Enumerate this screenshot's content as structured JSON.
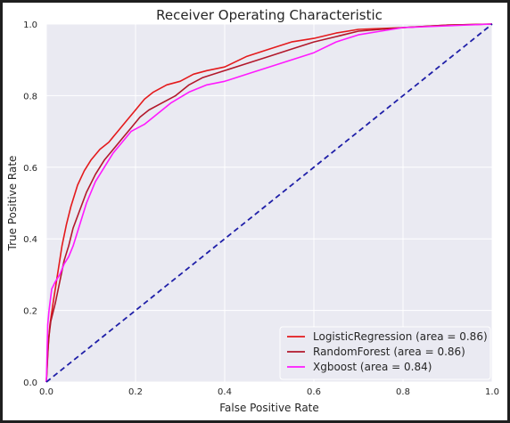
{
  "chart_data": {
    "type": "line",
    "title": "Receiver Operating Characteristic",
    "xlabel": "False Positive Rate",
    "ylabel": "True Positive Rate",
    "xlim": [
      0,
      1
    ],
    "ylim": [
      0,
      1
    ],
    "xticks": [
      "0.0",
      "0.2",
      "0.4",
      "0.6",
      "0.8",
      "1.0"
    ],
    "yticks": [
      "0.0",
      "0.2",
      "0.4",
      "0.6",
      "0.8",
      "1.0"
    ],
    "grid": true,
    "legend_position": "bottom-right",
    "background_color": "#eaeaf2",
    "series": [
      {
        "name": "LogisticRegression (area = 0.86)",
        "color": "#e41a1c",
        "x": [
          0,
          0.003,
          0.008,
          0.015,
          0.025,
          0.035,
          0.045,
          0.055,
          0.07,
          0.085,
          0.1,
          0.12,
          0.14,
          0.16,
          0.18,
          0.2,
          0.22,
          0.24,
          0.27,
          0.3,
          0.33,
          0.36,
          0.4,
          0.45,
          0.5,
          0.55,
          0.6,
          0.65,
          0.7,
          0.8,
          0.9,
          1.0
        ],
        "y": [
          0,
          0.08,
          0.16,
          0.22,
          0.3,
          0.38,
          0.44,
          0.49,
          0.55,
          0.59,
          0.62,
          0.65,
          0.67,
          0.7,
          0.73,
          0.76,
          0.79,
          0.81,
          0.83,
          0.84,
          0.86,
          0.87,
          0.88,
          0.91,
          0.93,
          0.95,
          0.96,
          0.975,
          0.985,
          0.99,
          0.997,
          1.0
        ]
      },
      {
        "name": "RandomForest (area = 0.86)",
        "color": "#b2182b",
        "x": [
          0,
          0.005,
          0.01,
          0.02,
          0.03,
          0.04,
          0.05,
          0.06,
          0.075,
          0.09,
          0.11,
          0.13,
          0.15,
          0.17,
          0.19,
          0.21,
          0.23,
          0.26,
          0.29,
          0.32,
          0.35,
          0.4,
          0.45,
          0.5,
          0.55,
          0.6,
          0.65,
          0.7,
          0.8,
          0.9,
          1.0
        ],
        "y": [
          0,
          0.12,
          0.17,
          0.22,
          0.28,
          0.34,
          0.38,
          0.43,
          0.48,
          0.53,
          0.58,
          0.62,
          0.65,
          0.68,
          0.71,
          0.74,
          0.76,
          0.78,
          0.8,
          0.83,
          0.85,
          0.87,
          0.89,
          0.91,
          0.93,
          0.95,
          0.965,
          0.98,
          0.99,
          0.997,
          1.0
        ]
      },
      {
        "name": "Xgboost (area = 0.84)",
        "color": "#ff19ff",
        "x": [
          0,
          0.003,
          0.006,
          0.012,
          0.02,
          0.03,
          0.04,
          0.05,
          0.06,
          0.075,
          0.09,
          0.11,
          0.13,
          0.15,
          0.17,
          0.19,
          0.22,
          0.25,
          0.28,
          0.32,
          0.36,
          0.4,
          0.45,
          0.5,
          0.55,
          0.6,
          0.65,
          0.7,
          0.75,
          0.8,
          0.9,
          1.0
        ],
        "y": [
          0,
          0.16,
          0.2,
          0.26,
          0.28,
          0.3,
          0.33,
          0.35,
          0.38,
          0.44,
          0.5,
          0.56,
          0.6,
          0.64,
          0.67,
          0.7,
          0.72,
          0.75,
          0.78,
          0.81,
          0.83,
          0.84,
          0.86,
          0.88,
          0.9,
          0.92,
          0.95,
          0.97,
          0.98,
          0.99,
          0.995,
          1.0
        ]
      },
      {
        "name": "",
        "color": "#1f1fa8",
        "dashed": true,
        "x": [
          0,
          1
        ],
        "y": [
          0,
          1
        ]
      }
    ]
  }
}
